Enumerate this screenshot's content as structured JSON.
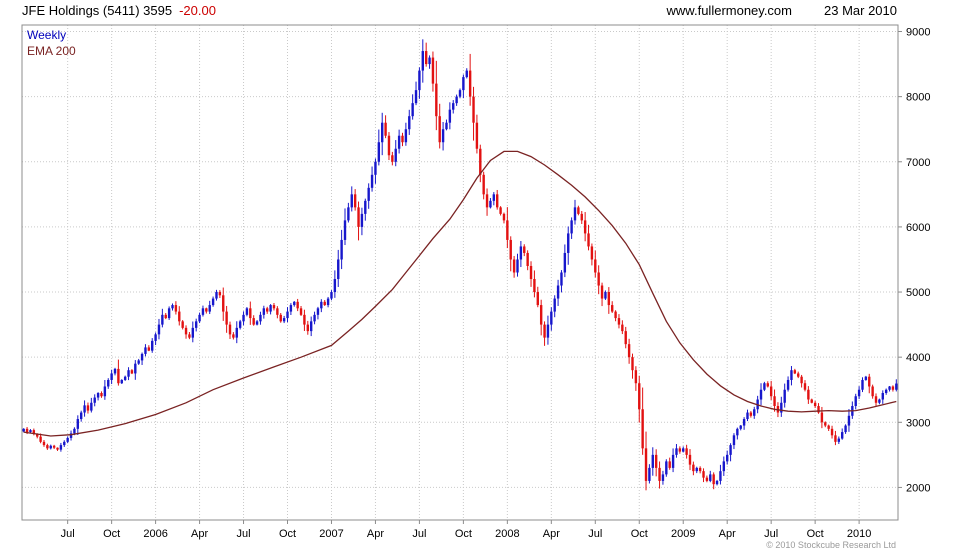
{
  "header": {
    "title": "JFE Holdings (5411) 3595",
    "change": "-20.00",
    "website": "www.fullermoney.com",
    "date": "23 Mar 2010"
  },
  "legend": {
    "series1": "Weekly",
    "series2": "EMA 200"
  },
  "footer": {
    "copyright": "© 2010 Stockcube Research Ltd"
  },
  "chart_data": {
    "type": "bar",
    "subtype": "weekly-candlestick",
    "title": "JFE Holdings (5411) weekly price with 200-day EMA",
    "last_price": 3595,
    "change": -20.0,
    "ylim": [
      1500,
      9100
    ],
    "y_ticks": [
      2000,
      3000,
      4000,
      5000,
      6000,
      7000,
      8000,
      9000
    ],
    "x_ticks": [
      {
        "label": "Jul",
        "week": 13
      },
      {
        "label": "Oct",
        "week": 26
      },
      {
        "label": "2006",
        "week": 39
      },
      {
        "label": "Apr",
        "week": 52
      },
      {
        "label": "Jul",
        "week": 65
      },
      {
        "label": "Oct",
        "week": 78
      },
      {
        "label": "2007",
        "week": 91
      },
      {
        "label": "Apr",
        "week": 104
      },
      {
        "label": "Jul",
        "week": 117
      },
      {
        "label": "Oct",
        "week": 130
      },
      {
        "label": "2008",
        "week": 143
      },
      {
        "label": "Apr",
        "week": 156
      },
      {
        "label": "Jul",
        "week": 169
      },
      {
        "label": "Oct",
        "week": 182
      },
      {
        "label": "2009",
        "week": 195
      },
      {
        "label": "Apr",
        "week": 208
      },
      {
        "label": "Jul",
        "week": 221
      },
      {
        "label": "Oct",
        "week": 234
      },
      {
        "label": "2010",
        "week": 247
      }
    ],
    "weekly_closes": [
      2900,
      2850,
      2880,
      2820,
      2780,
      2700,
      2650,
      2600,
      2640,
      2610,
      2580,
      2650,
      2700,
      2760,
      2830,
      2900,
      3050,
      3150,
      3260,
      3180,
      3300,
      3380,
      3450,
      3400,
      3550,
      3650,
      3750,
      3820,
      3600,
      3650,
      3700,
      3800,
      3750,
      3900,
      3950,
      4050,
      4150,
      4100,
      4250,
      4350,
      4500,
      4650,
      4600,
      4750,
      4800,
      4700,
      4550,
      4450,
      4350,
      4300,
      4450,
      4550,
      4650,
      4750,
      4700,
      4800,
      4900,
      5000,
      4950,
      4700,
      4500,
      4350,
      4300,
      4450,
      4550,
      4650,
      4750,
      4600,
      4500,
      4550,
      4650,
      4750,
      4700,
      4800,
      4750,
      4650,
      4550,
      4600,
      4700,
      4800,
      4850,
      4750,
      4650,
      4500,
      4400,
      4550,
      4650,
      4750,
      4850,
      4800,
      4900,
      5000,
      5200,
      5500,
      5800,
      6100,
      6300,
      6500,
      6300,
      6000,
      6200,
      6400,
      6600,
      6800,
      7000,
      7300,
      7600,
      7400,
      7100,
      7000,
      7200,
      7400,
      7300,
      7500,
      7700,
      7900,
      8100,
      8400,
      8700,
      8500,
      8600,
      8200,
      7700,
      7300,
      7500,
      7600,
      7800,
      7900,
      8000,
      8100,
      8300,
      8400,
      8000,
      7600,
      7200,
      6800,
      6500,
      6300,
      6400,
      6500,
      6300,
      6200,
      6100,
      5800,
      5500,
      5300,
      5500,
      5700,
      5600,
      5400,
      5200,
      5000,
      4800,
      4500,
      4300,
      4500,
      4700,
      4900,
      5100,
      5300,
      5600,
      5900,
      6100,
      6300,
      6200,
      6100,
      5900,
      5700,
      5500,
      5300,
      5100,
      4900,
      5000,
      4800,
      4700,
      4600,
      4500,
      4400,
      4200,
      4000,
      3800,
      3600,
      3200,
      2600,
      2100,
      2300,
      2500,
      2300,
      2100,
      2200,
      2400,
      2300,
      2500,
      2600,
      2550,
      2600,
      2500,
      2350,
      2250,
      2300,
      2250,
      2150,
      2100,
      2200,
      2050,
      2100,
      2250,
      2400,
      2500,
      2650,
      2800,
      2900,
      2950,
      3050,
      3150,
      3100,
      3200,
      3350,
      3500,
      3600,
      3550,
      3400,
      3250,
      3150,
      3300,
      3500,
      3650,
      3800,
      3750,
      3700,
      3600,
      3500,
      3350,
      3300,
      3250,
      3150,
      3000,
      2950,
      2900,
      2800,
      2700,
      2750,
      2850,
      2950,
      3100,
      3250,
      3400,
      3500,
      3650,
      3700,
      3550,
      3400,
      3300,
      3350,
      3450,
      3500,
      3550,
      3500,
      3595
    ],
    "ema_points": [
      [
        0,
        2850
      ],
      [
        8,
        2790
      ],
      [
        14,
        2810
      ],
      [
        22,
        2880
      ],
      [
        30,
        2980
      ],
      [
        39,
        3120
      ],
      [
        48,
        3300
      ],
      [
        56,
        3500
      ],
      [
        65,
        3680
      ],
      [
        74,
        3850
      ],
      [
        82,
        4000
      ],
      [
        91,
        4180
      ],
      [
        96,
        4400
      ],
      [
        100,
        4580
      ],
      [
        104,
        4780
      ],
      [
        109,
        5040
      ],
      [
        113,
        5300
      ],
      [
        117,
        5560
      ],
      [
        121,
        5820
      ],
      [
        126,
        6120
      ],
      [
        130,
        6420
      ],
      [
        134,
        6750
      ],
      [
        138,
        7020
      ],
      [
        142,
        7160
      ],
      [
        146,
        7160
      ],
      [
        150,
        7080
      ],
      [
        154,
        6950
      ],
      [
        158,
        6800
      ],
      [
        162,
        6640
      ],
      [
        166,
        6460
      ],
      [
        170,
        6250
      ],
      [
        174,
        6020
      ],
      [
        178,
        5750
      ],
      [
        182,
        5420
      ],
      [
        186,
        4980
      ],
      [
        190,
        4550
      ],
      [
        194,
        4220
      ],
      [
        198,
        3960
      ],
      [
        202,
        3740
      ],
      [
        206,
        3560
      ],
      [
        210,
        3420
      ],
      [
        214,
        3320
      ],
      [
        218,
        3250
      ],
      [
        222,
        3200
      ],
      [
        226,
        3170
      ],
      [
        230,
        3160
      ],
      [
        234,
        3170
      ],
      [
        238,
        3180
      ],
      [
        242,
        3170
      ],
      [
        246,
        3180
      ],
      [
        250,
        3220
      ],
      [
        254,
        3270
      ],
      [
        258,
        3320
      ]
    ],
    "colors": {
      "up": "#1717cc",
      "down": "#e21111",
      "ema": "#7a2323",
      "grid": "#c9c9c9",
      "border": "#8c8c8c",
      "change_text": "#cc0000",
      "legend_weekly": "#0000bb",
      "legend_ema": "#7a2323"
    }
  }
}
